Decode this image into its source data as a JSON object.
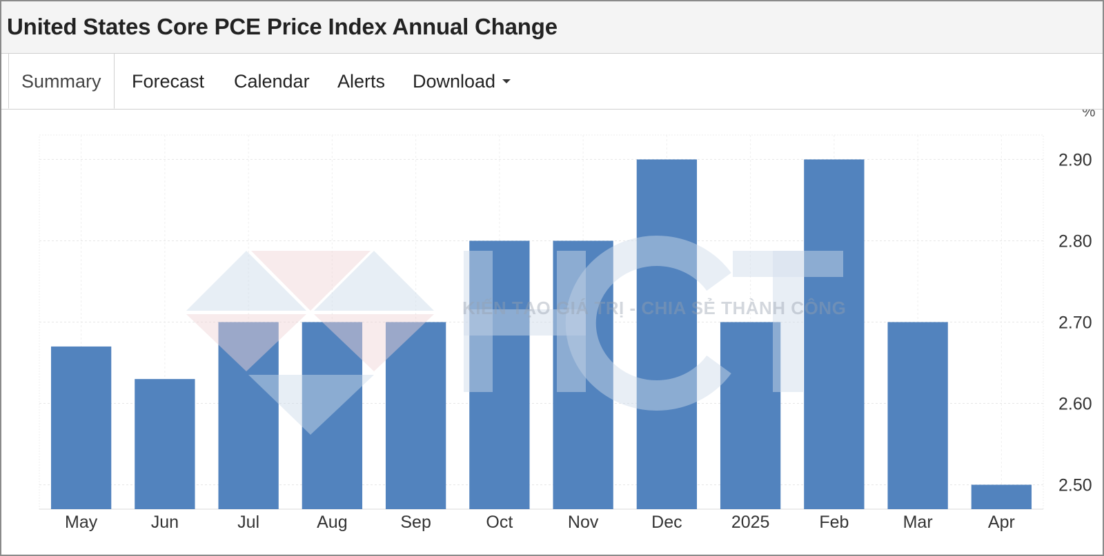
{
  "header": {
    "title": "United States Core PCE Price Index Annual Change"
  },
  "tabs": [
    {
      "label": "Summary",
      "active": true
    },
    {
      "label": "Forecast"
    },
    {
      "label": "Calendar"
    },
    {
      "label": "Alerts"
    },
    {
      "label": "Download",
      "dropdown": true
    }
  ],
  "watermark": {
    "logo_text": "HCT",
    "tagline": "KIẾN TẠO GIÁ TRỊ - CHIA SẺ THÀNH CÔNG"
  },
  "colors": {
    "bar": "#4f81bd",
    "grid": "#e6e6e6",
    "axis_text": "#333333"
  },
  "chart_data": {
    "type": "bar",
    "title": "United States Core PCE Price Index Annual Change",
    "unit": "%",
    "categories": [
      "May",
      "Jun",
      "Jul",
      "Aug",
      "Sep",
      "Oct",
      "Nov",
      "Dec",
      "2025",
      "Feb",
      "Mar",
      "Apr"
    ],
    "values": [
      2.67,
      2.63,
      2.7,
      2.7,
      2.7,
      2.8,
      2.8,
      2.9,
      2.7,
      2.9,
      2.7,
      2.5
    ],
    "ylim": [
      2.47,
      2.93
    ],
    "yticks": [
      "2.50",
      "2.60",
      "2.70",
      "2.80",
      "2.90"
    ],
    "y_axis_position": "right",
    "grid": true,
    "legend": "none"
  }
}
